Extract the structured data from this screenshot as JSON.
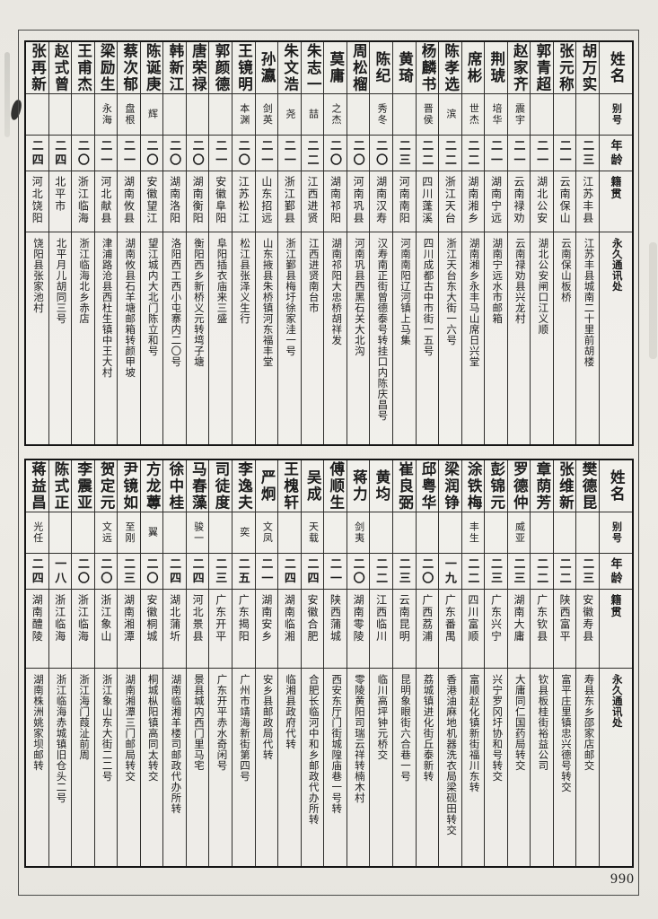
{
  "page": {
    "number": "990"
  },
  "labels": {
    "name": "姓名",
    "alias": "别号",
    "age": "年龄",
    "native": "籍贯",
    "address": "永久通讯处"
  },
  "table1": {
    "entries": [
      {
        "name": "胡万实",
        "alias": "",
        "age": "二三",
        "native": "江苏丰县",
        "address": "江苏丰县城南二十里前胡楼"
      },
      {
        "name": "张元称",
        "alias": "",
        "age": "二一",
        "native": "云南保山",
        "address": "云南保山板桥"
      },
      {
        "name": "郭青超",
        "alias": "",
        "age": "二一",
        "native": "湖北公安",
        "address": "湖北公安闸口江义顺"
      },
      {
        "name": "赵家齐",
        "alias": "震宇",
        "age": "二一",
        "native": "云南禄劝",
        "address": "云南禄劝县兴龙村"
      },
      {
        "name": "荆琥",
        "alias": "培华",
        "age": "二一",
        "native": "湖南宁远",
        "address": "湖南宁远水市邮箱"
      },
      {
        "name": "席彬",
        "alias": "世杰",
        "age": "二二",
        "native": "湖南湘乡",
        "address": "湖南湘乡永丰马山席日兴堂"
      },
      {
        "name": "陈孝选",
        "alias": "滨",
        "age": "二二",
        "native": "浙江天台",
        "address": "浙江天台东大街一六号"
      },
      {
        "name": "杨麟书",
        "alias": "晋侯",
        "age": "二二",
        "native": "四川蓬溪",
        "address": "四川成都古中市街一五号"
      },
      {
        "name": "黄琦",
        "alias": "",
        "age": "二三",
        "native": "河南南阳",
        "address": "河南南阳辽河镇上马集"
      },
      {
        "name": "陈纪",
        "alias": "秀冬",
        "age": "二〇",
        "native": "湖南汉寿",
        "address": "汉寿南正街曾德泰号转挂口内陈庆昌号"
      },
      {
        "name": "周松榴",
        "alias": "",
        "age": "二〇",
        "native": "河南巩县",
        "address": "河南巩县西黑石关大北沟"
      },
      {
        "name": "莫庸",
        "alias": "之杰",
        "age": "二〇",
        "native": "湖南祁阳",
        "address": "湖南祁阳大忠桥胡祥发"
      },
      {
        "name": "朱志一",
        "alias": "喆",
        "age": "二二",
        "native": "江西进贤",
        "address": "江西进贤南台市"
      },
      {
        "name": "朱文浩",
        "alias": "尧",
        "age": "二一",
        "native": "浙江鄞县",
        "address": "浙江鄞县梅圩徐家洼一号"
      },
      {
        "name": "孙瀛",
        "alias": "剑英",
        "age": "二一",
        "native": "山东招远",
        "address": "山东掖县朱桥镇河东福丰堂"
      },
      {
        "name": "王镜明",
        "alias": "本渊",
        "age": "二〇",
        "native": "江苏松江",
        "address": "松江县张泽义生行"
      },
      {
        "name": "郭颜德",
        "alias": "",
        "age": "二一",
        "native": "安徽阜阳",
        "address": "阜阳插衣庙来三盛"
      },
      {
        "name": "唐荣禄",
        "alias": "",
        "age": "二〇",
        "native": "湖南衡阳",
        "address": "衡阳西乡新桥义元转塆子塘"
      },
      {
        "name": "韩新江",
        "alias": "",
        "age": "二〇",
        "native": "湖南洛阳",
        "address": "洛阳西工西小屯寨内二〇号"
      },
      {
        "name": "陈诞庚",
        "alias": "辉",
        "age": "二〇",
        "native": "安徽望江",
        "address": "望江城内大北门陈立和号"
      },
      {
        "name": "蔡次郁",
        "alias": "盘根",
        "age": "二一",
        "native": "湖南攸县",
        "address": "湖南攸县石羊塘邮箱转颜甲坡"
      },
      {
        "name": "梁励生",
        "alias": "永海",
        "age": "二一",
        "native": "河北献县",
        "address": "津浦路沧县西杜生镇中王大村"
      },
      {
        "name": "王甫杰",
        "alias": "",
        "age": "二〇",
        "native": "浙江临海",
        "address": "浙江临海北乡赤店"
      },
      {
        "name": "赵式曾",
        "alias": "",
        "age": "二四",
        "native": "北平市",
        "address": "北平月儿胡同三号"
      },
      {
        "name": "张再新",
        "alias": "",
        "age": "二四",
        "native": "河北饶阳",
        "address": "饶阳县张家池村"
      }
    ]
  },
  "table2": {
    "entries": [
      {
        "name": "樊德昆",
        "alias": "",
        "age": "二三",
        "native": "安徽寿县",
        "address": "寿县东乡邵家店邮交"
      },
      {
        "name": "张维新",
        "alias": "",
        "age": "二二",
        "native": "陕西富平",
        "address": "富平庄里镇忠兴德号转交"
      },
      {
        "name": "章荫芳",
        "alias": "",
        "age": "二二",
        "native": "广东钦县",
        "address": "钦县板桂街裕益公司"
      },
      {
        "name": "罗德仲",
        "alias": "威亚",
        "age": "二三",
        "native": "湖南大庸",
        "address": "大庸同仁国药局转交"
      },
      {
        "name": "彭锦元",
        "alias": "",
        "age": "二三",
        "native": "广东兴宁",
        "address": "兴宁罗冈圩协和号转交"
      },
      {
        "name": "涂铁梅",
        "alias": "丰生",
        "age": "二二",
        "native": "四川富顺",
        "address": "富顺赵化镇新街福川东转"
      },
      {
        "name": "梁润铮",
        "alias": "",
        "age": "一九",
        "native": "广东番禺",
        "address": "香港油麻地机器洗衣局梁砚田转交"
      },
      {
        "name": "邱粤华",
        "alias": "",
        "age": "二〇",
        "native": "广西荔浦",
        "address": "荔城镇进化街丘泰新转"
      },
      {
        "name": "崔良弼",
        "alias": "",
        "age": "二三",
        "native": "云南昆明",
        "address": "昆明象眼街六合巷一号"
      },
      {
        "name": "黄均",
        "alias": "",
        "age": "二二",
        "native": "江西临川",
        "address": "临川高坪钟元桥交"
      },
      {
        "name": "蒋力",
        "alias": "剑夷",
        "age": "二〇",
        "native": "湖南零陵",
        "address": "零陵黄阳司瑞云祥转楠木村"
      },
      {
        "name": "傅顺生",
        "alias": "",
        "age": "二一",
        "native": "陕西蒲城",
        "address": "西安东厅门街城隍庙巷一号转"
      },
      {
        "name": "吴成",
        "alias": "天载",
        "age": "二四",
        "native": "安徽合肥",
        "address": "合肥长临河中和乡邮政代办所转"
      },
      {
        "name": "王槐轩",
        "alias": "",
        "age": "二四",
        "native": "湖南临湘",
        "address": "临湘县政府代转"
      },
      {
        "name": "严炯",
        "alias": "文凤",
        "age": "二一",
        "native": "湖南安乡",
        "address": "安乡县邮政局代转"
      },
      {
        "name": "李逸夫",
        "alias": "奕",
        "age": "二五",
        "native": "广东揭阳",
        "address": "广州市靖海新街第四号"
      },
      {
        "name": "司徒度",
        "alias": "",
        "age": "二三",
        "native": "广东开平",
        "address": "广东开平赤水奇闲号"
      },
      {
        "name": "马春藻",
        "alias": "骏一",
        "age": "二四",
        "native": "河北景县",
        "address": "景县城内西门里马宅"
      },
      {
        "name": "徐中桂",
        "alias": "",
        "age": "二四",
        "native": "湖北蒲圻",
        "address": "湖南临湘羊楼司邮政代办所转"
      },
      {
        "name": "方龙蓴",
        "alias": "翼",
        "age": "二〇",
        "native": "安徽桐城",
        "address": "桐城枞阳镇高同太转交"
      },
      {
        "name": "尹镜如",
        "alias": "至刚",
        "age": "二三",
        "native": "湖南湘潭",
        "address": "湖南湘潭三门邮局转交"
      },
      {
        "name": "贺定元",
        "alias": "文远",
        "age": "二〇",
        "native": "浙江象山",
        "address": "浙江象山东大街二二号"
      },
      {
        "name": "李震亚",
        "alias": "",
        "age": "二〇",
        "native": "浙江临海",
        "address": "浙江海门葭沚前周"
      },
      {
        "name": "陈式正",
        "alias": "",
        "age": "一八",
        "native": "浙江临海",
        "address": "浙江临海赤城镇旧仓头二号"
      },
      {
        "name": "蒋益昌",
        "alias": "光任",
        "age": "二四",
        "native": "湖南醴陵",
        "address": "湖南株洲姚家坝邮转"
      }
    ]
  }
}
